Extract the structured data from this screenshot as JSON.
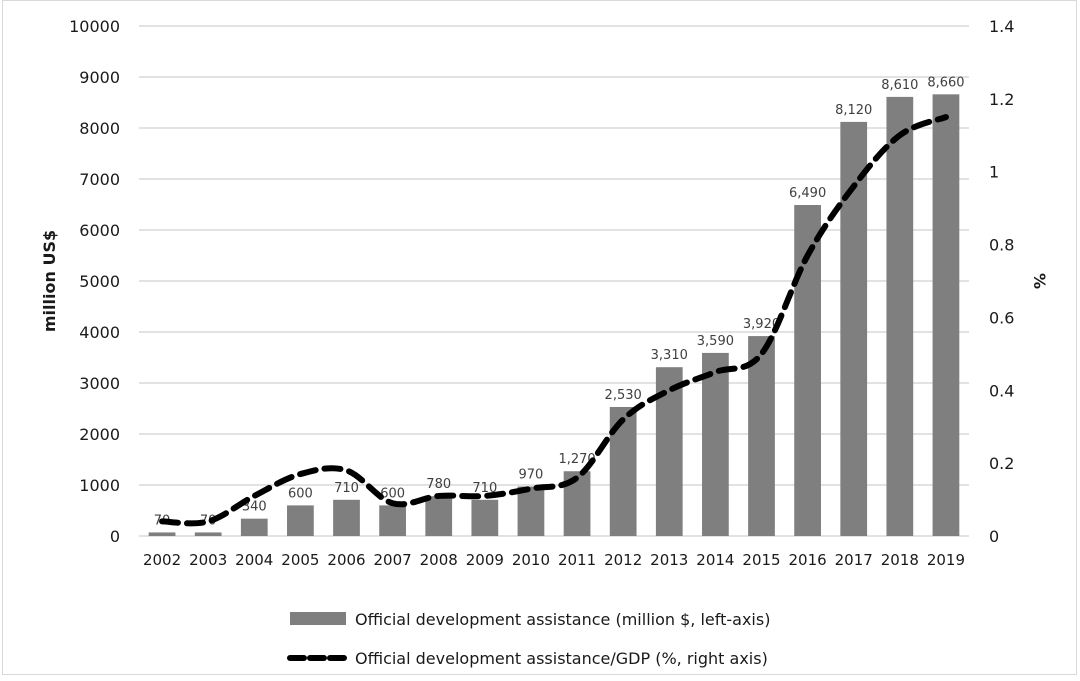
{
  "chart_data": {
    "type": "bar",
    "title": "",
    "categories": [
      "2002",
      "2003",
      "2004",
      "2005",
      "2006",
      "2007",
      "2008",
      "2009",
      "2010",
      "2011",
      "2012",
      "2013",
      "2014",
      "2015",
      "2016",
      "2017",
      "2018",
      "2019"
    ],
    "series": [
      {
        "name": "Official development assistance (million $, left-axis)",
        "type": "bar",
        "axis": "left",
        "color": "#7f7f7f",
        "values": [
          70,
          70,
          340,
          600,
          710,
          600,
          780,
          710,
          970,
          1270,
          2530,
          3310,
          3590,
          3920,
          6490,
          8120,
          8610,
          8660
        ],
        "data_labels": [
          "70",
          "70",
          "340",
          "600",
          "710",
          "600",
          "780",
          "710",
          "970",
          "1,270",
          "2,530",
          "3,310",
          "3,590",
          "3,920",
          "6,490",
          "8,120",
          "8,610",
          "8,660"
        ]
      },
      {
        "name": "Official development assistance/GDP (%, right axis)",
        "type": "line",
        "style": "dashed",
        "axis": "right",
        "color": "#000000",
        "values": [
          0.04,
          0.04,
          0.11,
          0.17,
          0.18,
          0.09,
          0.11,
          0.11,
          0.13,
          0.16,
          0.32,
          0.4,
          0.45,
          0.5,
          0.77,
          0.96,
          1.1,
          1.15
        ]
      }
    ],
    "ylabel": "million US$",
    "y2label": "%",
    "xlabel": "",
    "ylim": [
      0,
      10000
    ],
    "y2lim": [
      0,
      1.4
    ],
    "yticks": [
      "0",
      "1000",
      "2000",
      "3000",
      "4000",
      "5000",
      "6000",
      "7000",
      "8000",
      "9000",
      "10000"
    ],
    "y2ticks": [
      "0",
      "0.2",
      "0.4",
      "0.6",
      "0.8",
      "1",
      "1.2",
      "1.4"
    ],
    "grid": true,
    "legend_position": "bottom"
  }
}
